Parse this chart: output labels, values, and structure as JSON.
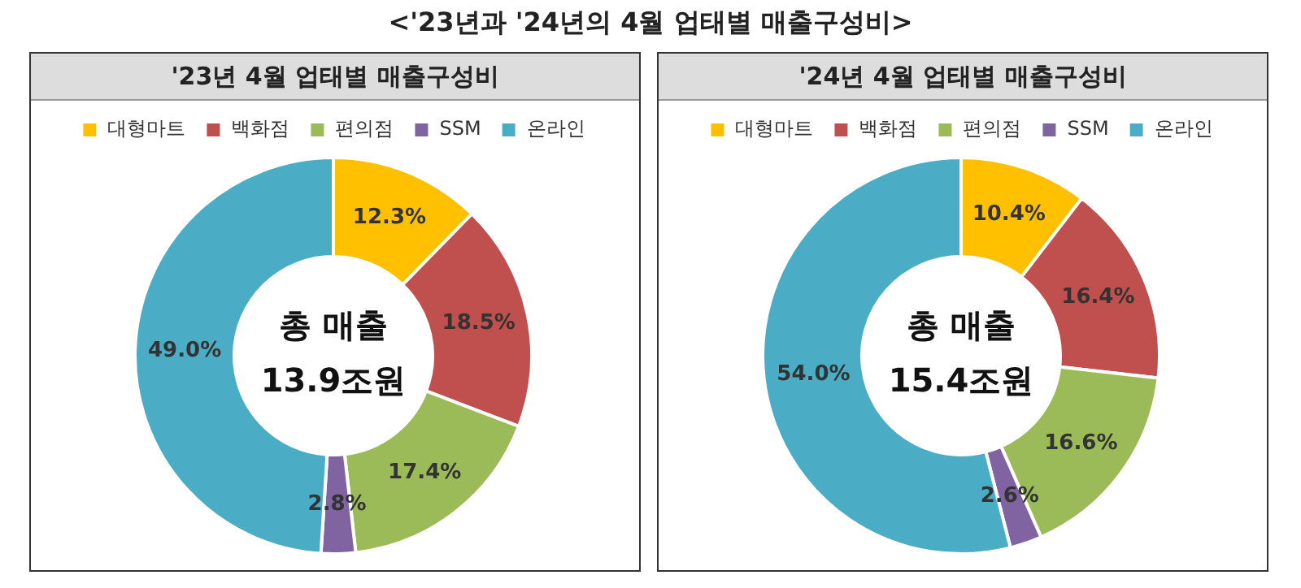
{
  "chart_data": [
    {
      "type": "donut",
      "title": "'23년 4월 업태별 매출구성비",
      "annotations": [
        "<'23년과 '24년의 4월 업태별 매출구성비>",
        "총 매출",
        "13.9조원"
      ],
      "legend": "top",
      "categories": [
        "대형마트",
        "백화점",
        "편의점",
        "SSM",
        "온라인"
      ],
      "values": [
        12.3,
        18.5,
        17.4,
        2.8,
        49.0
      ],
      "value_labels": [
        "12.3%",
        "18.5%",
        "17.4%",
        "2.8%",
        "49.0%"
      ],
      "colors": [
        "#ffc000",
        "#c0504d",
        "#9bbb59",
        "#8064a2",
        "#4bacc6"
      ]
    },
    {
      "type": "donut",
      "title": "'24년 4월 업태별 매출구성비",
      "annotations": [
        "총 매출",
        "15.4조원"
      ],
      "legend": "top",
      "categories": [
        "대형마트",
        "백화점",
        "편의점",
        "SSM",
        "온라인"
      ],
      "values": [
        10.4,
        16.4,
        16.6,
        2.6,
        54.0
      ],
      "value_labels": [
        "10.4%",
        "16.4%",
        "16.6%",
        "2.6%",
        "54.0%"
      ],
      "colors": [
        "#ffc000",
        "#c0504d",
        "#9bbb59",
        "#8064a2",
        "#4bacc6"
      ]
    }
  ]
}
